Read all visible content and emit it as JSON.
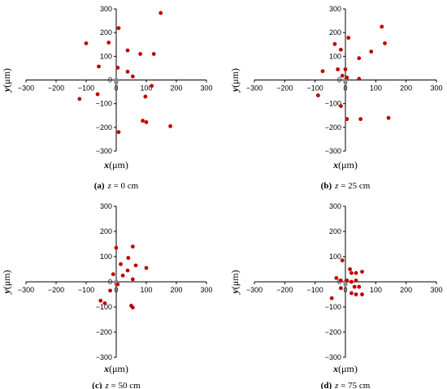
{
  "chart_data": [
    {
      "type": "scatter",
      "caption": {
        "label": "(a)",
        "var": "z",
        "text": " = 0 cm"
      },
      "xlabel": {
        "var": "x",
        "unit": "(μm)"
      },
      "ylabel": {
        "var": "y",
        "unit": "(μm)"
      },
      "xlim": [
        -300,
        300
      ],
      "ylim": [
        -300,
        300
      ],
      "xticks": [
        "−300",
        "−200",
        "−100",
        "0",
        "100",
        "200",
        "300"
      ],
      "yticks": [
        "300",
        "200",
        "100",
        "0",
        "−100",
        "−200",
        "−300"
      ],
      "point_color": "#c00000",
      "points": [
        {
          "x": 148,
          "y": 283
        },
        {
          "x": 8,
          "y": 219
        },
        {
          "x": -100,
          "y": 155
        },
        {
          "x": -25,
          "y": 158
        },
        {
          "x": 38,
          "y": 125
        },
        {
          "x": 80,
          "y": 110
        },
        {
          "x": 125,
          "y": 110
        },
        {
          "x": -58,
          "y": 57
        },
        {
          "x": 5,
          "y": 52
        },
        {
          "x": 38,
          "y": 35
        },
        {
          "x": 55,
          "y": 15
        },
        {
          "x": 118,
          "y": -25
        },
        {
          "x": 97,
          "y": -70
        },
        {
          "x": -62,
          "y": -60
        },
        {
          "x": -122,
          "y": -80
        },
        {
          "x": 88,
          "y": -172
        },
        {
          "x": 100,
          "y": -178
        },
        {
          "x": 180,
          "y": -195
        },
        {
          "x": 8,
          "y": -220
        },
        {
          "x": 0,
          "y": -5
        }
      ]
    },
    {
      "type": "scatter",
      "caption": {
        "label": "(b)",
        "var": "z",
        "text": " = 25 cm"
      },
      "xlabel": {
        "var": "x",
        "unit": "(μm)"
      },
      "ylabel": {
        "var": "y",
        "unit": "(μm)"
      },
      "xlim": [
        -300,
        300
      ],
      "ylim": [
        -300,
        300
      ],
      "xticks": [
        "−300",
        "−200",
        "−100",
        "0",
        "100",
        "200",
        "300"
      ],
      "yticks": [
        "300",
        "200",
        "100",
        "0",
        "−100",
        "−200",
        "−300"
      ],
      "point_color": "#c00000",
      "points": [
        {
          "x": 120,
          "y": 225
        },
        {
          "x": 10,
          "y": 178
        },
        {
          "x": -35,
          "y": 152
        },
        {
          "x": 130,
          "y": 155
        },
        {
          "x": -15,
          "y": 128
        },
        {
          "x": 85,
          "y": 120
        },
        {
          "x": 45,
          "y": 92
        },
        {
          "x": -75,
          "y": 37
        },
        {
          "x": -25,
          "y": 45
        },
        {
          "x": 0,
          "y": 45
        },
        {
          "x": -10,
          "y": 18
        },
        {
          "x": 5,
          "y": 10
        },
        {
          "x": 45,
          "y": 5
        },
        {
          "x": -90,
          "y": -65
        },
        {
          "x": -15,
          "y": -110
        },
        {
          "x": 5,
          "y": -165
        },
        {
          "x": 50,
          "y": -165
        },
        {
          "x": 142,
          "y": -160
        },
        {
          "x": 0,
          "y": -5
        }
      ]
    },
    {
      "type": "scatter",
      "caption": {
        "label": "(c)",
        "var": "z",
        "text": " = 50 cm"
      },
      "xlabel": {
        "var": "x",
        "unit": "(μm)"
      },
      "ylabel": {
        "var": "y",
        "unit": "(μm)"
      },
      "xlim": [
        -300,
        300
      ],
      "ylim": [
        -300,
        300
      ],
      "xticks": [
        "−300",
        "−200",
        "−100",
        "0",
        "100",
        "200",
        "300"
      ],
      "yticks": [
        "300",
        "200",
        "100",
        "0",
        "−100",
        "−200",
        "−300"
      ],
      "point_color": "#c00000",
      "points": [
        {
          "x": 0,
          "y": 135
        },
        {
          "x": 55,
          "y": 140
        },
        {
          "x": 40,
          "y": 95
        },
        {
          "x": 15,
          "y": 70
        },
        {
          "x": 65,
          "y": 65
        },
        {
          "x": 100,
          "y": 55
        },
        {
          "x": 38,
          "y": 45
        },
        {
          "x": -10,
          "y": 30
        },
        {
          "x": 22,
          "y": 25
        },
        {
          "x": 55,
          "y": 10
        },
        {
          "x": 5,
          "y": -10
        },
        {
          "x": -20,
          "y": -35
        },
        {
          "x": -52,
          "y": -75
        },
        {
          "x": -38,
          "y": -85
        },
        {
          "x": 50,
          "y": -95
        },
        {
          "x": 55,
          "y": -102
        },
        {
          "x": 0,
          "y": -5
        }
      ]
    },
    {
      "type": "scatter",
      "caption": {
        "label": "(d)",
        "var": "z",
        "text": " = 75 cm"
      },
      "xlabel": {
        "var": "x",
        "unit": "(μm)"
      },
      "ylabel": {
        "var": "y",
        "unit": "(μm)"
      },
      "xlim": [
        -300,
        300
      ],
      "ylim": [
        -300,
        300
      ],
      "xticks": [
        "−300",
        "−200",
        "−100",
        "0",
        "100",
        "200",
        "300"
      ],
      "yticks": [
        "300",
        "200",
        "100",
        "0",
        "−100",
        "−200",
        "−300"
      ],
      "point_color": "#c00000",
      "points": [
        {
          "x": -10,
          "y": 85
        },
        {
          "x": 15,
          "y": 50
        },
        {
          "x": 20,
          "y": 35
        },
        {
          "x": 35,
          "y": 35
        },
        {
          "x": 55,
          "y": 40
        },
        {
          "x": -30,
          "y": 15
        },
        {
          "x": -15,
          "y": 5
        },
        {
          "x": 5,
          "y": 5
        },
        {
          "x": 20,
          "y": 0
        },
        {
          "x": 35,
          "y": 5
        },
        {
          "x": 30,
          "y": -20
        },
        {
          "x": 45,
          "y": -20
        },
        {
          "x": -15,
          "y": -25
        },
        {
          "x": 20,
          "y": -45
        },
        {
          "x": 35,
          "y": -50
        },
        {
          "x": 55,
          "y": -50
        },
        {
          "x": -45,
          "y": -65
        },
        {
          "x": 0,
          "y": -5
        }
      ]
    }
  ]
}
